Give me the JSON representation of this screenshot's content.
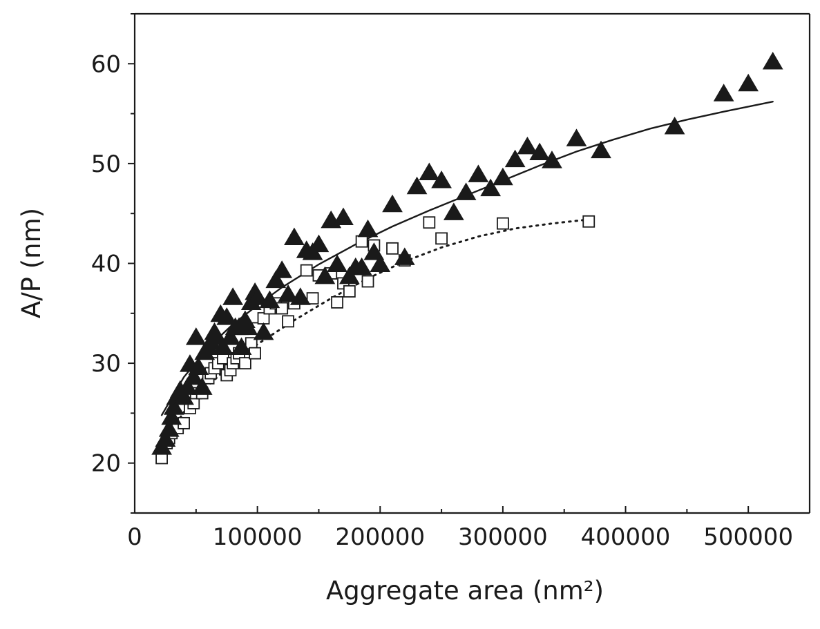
{
  "chart_data": {
    "type": "scatter",
    "xlabel": "Aggregate area (nm²)",
    "ylabel": "A/P (nm)",
    "xlim": [
      0,
      550000
    ],
    "ylim": [
      15,
      65
    ],
    "x_ticks": [
      0,
      100000,
      200000,
      300000,
      400000,
      500000
    ],
    "x_tick_labels": [
      "0",
      "100000",
      "200000",
      "300000",
      "400000",
      "500000"
    ],
    "y_ticks": [
      20,
      30,
      40,
      50,
      60
    ],
    "y_tick_labels": [
      "20",
      "30",
      "40",
      "50",
      "60"
    ],
    "grid": false,
    "legend": "none",
    "series": [
      {
        "marker": "filled-triangle",
        "color": "#1a1a1a",
        "points": [
          [
            22000,
            21.5
          ],
          [
            25000,
            22.3
          ],
          [
            28000,
            23.3
          ],
          [
            30000,
            24.5
          ],
          [
            32000,
            25.5
          ],
          [
            34000,
            26.5
          ],
          [
            37000,
            27.2
          ],
          [
            40000,
            26.5
          ],
          [
            43000,
            27.5
          ],
          [
            45000,
            29.8
          ],
          [
            48000,
            28.5
          ],
          [
            50000,
            32.5
          ],
          [
            52000,
            29.5
          ],
          [
            55000,
            27.5
          ],
          [
            57000,
            31.0
          ],
          [
            60000,
            31.5
          ],
          [
            62000,
            32.0
          ],
          [
            65000,
            33.0
          ],
          [
            67000,
            32.5
          ],
          [
            70000,
            34.8
          ],
          [
            72000,
            31.5
          ],
          [
            75000,
            34.5
          ],
          [
            78000,
            32.5
          ],
          [
            80000,
            36.5
          ],
          [
            82000,
            33.5
          ],
          [
            85000,
            33.5
          ],
          [
            87000,
            31.5
          ],
          [
            90000,
            34.2
          ],
          [
            92000,
            33.5
          ],
          [
            95000,
            36.0
          ],
          [
            98000,
            37.0
          ],
          [
            100000,
            36.5
          ],
          [
            105000,
            33.0
          ],
          [
            110000,
            36.2
          ],
          [
            115000,
            38.2
          ],
          [
            120000,
            39.2
          ],
          [
            125000,
            36.8
          ],
          [
            130000,
            42.5
          ],
          [
            135000,
            36.5
          ],
          [
            140000,
            41.2
          ],
          [
            145000,
            41.0
          ],
          [
            150000,
            41.8
          ],
          [
            155000,
            38.6
          ],
          [
            160000,
            44.2
          ],
          [
            165000,
            39.8
          ],
          [
            170000,
            44.5
          ],
          [
            175000,
            38.6
          ],
          [
            180000,
            39.5
          ],
          [
            185000,
            39.5
          ],
          [
            190000,
            43.3
          ],
          [
            195000,
            41.0
          ],
          [
            200000,
            39.8
          ],
          [
            210000,
            45.8
          ],
          [
            220000,
            40.5
          ],
          [
            230000,
            47.6
          ],
          [
            240000,
            49.0
          ],
          [
            250000,
            48.2
          ],
          [
            260000,
            45.0
          ],
          [
            270000,
            47.0
          ],
          [
            280000,
            48.8
          ],
          [
            290000,
            47.4
          ],
          [
            300000,
            48.5
          ],
          [
            310000,
            50.3
          ],
          [
            320000,
            51.6
          ],
          [
            330000,
            51.0
          ],
          [
            340000,
            50.2
          ],
          [
            360000,
            52.4
          ],
          [
            380000,
            51.2
          ],
          [
            440000,
            53.6
          ],
          [
            480000,
            56.9
          ],
          [
            500000,
            57.9
          ],
          [
            520000,
            60.1
          ]
        ]
      },
      {
        "marker": "open-square",
        "color": "#1a1a1a",
        "points": [
          [
            22000,
            20.5
          ],
          [
            26000,
            22.0
          ],
          [
            28000,
            22.5
          ],
          [
            30000,
            23.0
          ],
          [
            35000,
            23.5
          ],
          [
            40000,
            24.0
          ],
          [
            45000,
            25.5
          ],
          [
            48000,
            26.0
          ],
          [
            50000,
            27.0
          ],
          [
            55000,
            27.0
          ],
          [
            60000,
            28.5
          ],
          [
            62000,
            29.0
          ],
          [
            65000,
            29.5
          ],
          [
            68000,
            30.0
          ],
          [
            72000,
            30.5
          ],
          [
            75000,
            28.8
          ],
          [
            78000,
            29.3
          ],
          [
            80000,
            30.0
          ],
          [
            83000,
            30.5
          ],
          [
            85000,
            31.0
          ],
          [
            90000,
            30.0
          ],
          [
            95000,
            32.0
          ],
          [
            98000,
            31.0
          ],
          [
            100000,
            33.5
          ],
          [
            105000,
            34.5
          ],
          [
            110000,
            35.5
          ],
          [
            115000,
            36.0
          ],
          [
            120000,
            35.5
          ],
          [
            125000,
            34.2
          ],
          [
            130000,
            36.0
          ],
          [
            140000,
            39.3
          ],
          [
            145000,
            36.5
          ],
          [
            150000,
            38.8
          ],
          [
            160000,
            39.0
          ],
          [
            165000,
            36.1
          ],
          [
            170000,
            38.0
          ],
          [
            175000,
            37.2
          ],
          [
            185000,
            42.2
          ],
          [
            190000,
            38.2
          ],
          [
            195000,
            41.8
          ],
          [
            210000,
            41.5
          ],
          [
            220000,
            40.3
          ],
          [
            240000,
            44.1
          ],
          [
            250000,
            42.5
          ],
          [
            300000,
            44.0
          ],
          [
            370000,
            44.2
          ]
        ]
      }
    ],
    "fits": [
      {
        "style": "solid",
        "points": [
          [
            22000,
            24.8
          ],
          [
            40000,
            28.6
          ],
          [
            60000,
            31.6
          ],
          [
            80000,
            33.9
          ],
          [
            100000,
            35.8
          ],
          [
            120000,
            37.6
          ],
          [
            150000,
            39.9
          ],
          [
            180000,
            41.9
          ],
          [
            210000,
            43.7
          ],
          [
            240000,
            45.3
          ],
          [
            270000,
            46.8
          ],
          [
            300000,
            48.3
          ],
          [
            330000,
            49.8
          ],
          [
            360000,
            51.2
          ],
          [
            390000,
            52.4
          ],
          [
            420000,
            53.5
          ],
          [
            450000,
            54.4
          ],
          [
            480000,
            55.2
          ],
          [
            520000,
            56.2
          ]
        ]
      },
      {
        "style": "dotted",
        "points": [
          [
            22000,
            21.8
          ],
          [
            40000,
            25.1
          ],
          [
            60000,
            27.8
          ],
          [
            80000,
            30.0
          ],
          [
            100000,
            31.9
          ],
          [
            130000,
            34.3
          ],
          [
            160000,
            36.5
          ],
          [
            190000,
            38.5
          ],
          [
            220000,
            40.2
          ],
          [
            250000,
            41.6
          ],
          [
            280000,
            42.7
          ],
          [
            310000,
            43.5
          ],
          [
            340000,
            44.0
          ],
          [
            370000,
            44.4
          ]
        ]
      }
    ]
  }
}
